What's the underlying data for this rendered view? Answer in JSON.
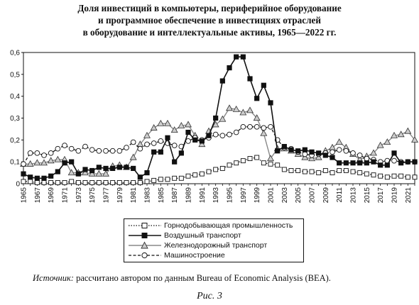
{
  "title": {
    "lines": [
      "Доля инвестиций в компьютеры, периферийное оборудование",
      "и программное обеспечение в инвестициях отраслей",
      "в оборудование и интеллектуальные активы, 1965—2022 гг."
    ]
  },
  "source": {
    "label": "Источник:",
    "text": " рассчитано автором по данным Bureau of Economic Analysis (BEA)."
  },
  "caption": "Рис. 3",
  "chart_data": {
    "type": "line",
    "ylim": [
      0,
      0.6
    ],
    "yticks": [
      "0",
      "0,1",
      "0,2",
      "0,3",
      "0,4",
      "0,5",
      "0,6"
    ],
    "x_tick_labels": [
      "1965",
      "1967",
      "1969",
      "1971",
      "1973",
      "1975",
      "1977",
      "1979",
      "1981",
      "1983",
      "1985",
      "1987",
      "1989",
      "1991",
      "1993",
      "1995",
      "1997",
      "1999",
      "2001",
      "2003",
      "2005",
      "2007",
      "2009",
      "2011",
      "2013",
      "2015",
      "2017",
      "2019",
      "2021"
    ],
    "x": [
      1965,
      1966,
      1967,
      1968,
      1969,
      1970,
      1971,
      1972,
      1973,
      1974,
      1975,
      1976,
      1977,
      1978,
      1979,
      1980,
      1981,
      1982,
      1983,
      1984,
      1985,
      1986,
      1987,
      1988,
      1989,
      1990,
      1991,
      1992,
      1993,
      1994,
      1995,
      1996,
      1997,
      1998,
      1999,
      2000,
      2001,
      2002,
      2003,
      2004,
      2005,
      2006,
      2007,
      2008,
      2009,
      2010,
      2011,
      2012,
      2013,
      2014,
      2015,
      2016,
      2017,
      2018,
      2019,
      2020,
      2021,
      2022
    ],
    "legend_position": "bottom",
    "grid": false,
    "series": [
      {
        "name": "Горнодобывающая промышленность",
        "line": "dotted",
        "marker": "square-open",
        "values": [
          0.01,
          0.01,
          0.005,
          0.005,
          0.005,
          0.005,
          0.005,
          0.01,
          0.005,
          0.005,
          0.005,
          0.005,
          0.005,
          0.005,
          0.005,
          0.005,
          0.005,
          0.005,
          0.01,
          0.015,
          0.02,
          0.02,
          0.025,
          0.025,
          0.035,
          0.04,
          0.045,
          0.055,
          0.065,
          0.07,
          0.085,
          0.095,
          0.105,
          0.115,
          0.12,
          0.095,
          0.09,
          0.085,
          0.065,
          0.06,
          0.06,
          0.055,
          0.055,
          0.05,
          0.06,
          0.05,
          0.06,
          0.06,
          0.055,
          0.05,
          0.045,
          0.04,
          0.035,
          0.03,
          0.035,
          0.035,
          0.03,
          0.03
        ]
      },
      {
        "name": "Воздушный транспорт",
        "line": "solid",
        "marker": "square-filled",
        "values": [
          0.045,
          0.03,
          0.025,
          0.025,
          0.035,
          0.055,
          0.095,
          0.1,
          0.045,
          0.065,
          0.06,
          0.075,
          0.07,
          0.07,
          0.075,
          0.075,
          0.07,
          0.03,
          0.05,
          0.145,
          0.145,
          0.21,
          0.1,
          0.14,
          0.235,
          0.2,
          0.195,
          0.22,
          0.3,
          0.47,
          0.53,
          0.58,
          0.58,
          0.48,
          0.39,
          0.45,
          0.37,
          0.15,
          0.17,
          0.155,
          0.15,
          0.155,
          0.145,
          0.14,
          0.13,
          0.12,
          0.095,
          0.095,
          0.095,
          0.095,
          0.095,
          0.1,
          0.085,
          0.085,
          0.14,
          0.095,
          0.1,
          0.1
        ]
      },
      {
        "name": "Железнодорожный транспорт",
        "line": "solid",
        "marker": "triangle-open",
        "values": [
          0.09,
          0.09,
          0.095,
          0.095,
          0.105,
          0.11,
          0.11,
          0.05,
          0.05,
          0.05,
          0.045,
          0.045,
          0.045,
          0.08,
          0.085,
          0.075,
          0.12,
          0.18,
          0.22,
          0.255,
          0.275,
          0.275,
          0.245,
          0.265,
          0.27,
          0.22,
          0.18,
          0.24,
          0.27,
          0.295,
          0.345,
          0.34,
          0.325,
          0.335,
          0.3,
          0.23,
          0.115,
          0.16,
          0.16,
          0.15,
          0.135,
          0.12,
          0.115,
          0.12,
          0.15,
          0.165,
          0.19,
          0.165,
          0.135,
          0.11,
          0.125,
          0.14,
          0.175,
          0.19,
          0.22,
          0.225,
          0.24,
          0.2
        ]
      },
      {
        "name": "Машиностроение",
        "line": "dashed",
        "marker": "circle-open",
        "values": [
          0.09,
          0.14,
          0.14,
          0.13,
          0.14,
          0.16,
          0.175,
          0.16,
          0.15,
          0.17,
          0.155,
          0.15,
          0.15,
          0.15,
          0.15,
          0.165,
          0.19,
          0.16,
          0.18,
          0.185,
          0.195,
          0.185,
          0.175,
          0.17,
          0.195,
          0.21,
          0.2,
          0.21,
          0.225,
          0.22,
          0.225,
          0.235,
          0.26,
          0.26,
          0.26,
          0.255,
          0.26,
          0.2,
          0.165,
          0.16,
          0.145,
          0.135,
          0.13,
          0.135,
          0.14,
          0.145,
          0.155,
          0.15,
          0.14,
          0.13,
          0.115,
          0.11,
          0.1,
          0.105,
          0.105,
          0.1,
          0.1,
          0.1
        ]
      }
    ]
  }
}
